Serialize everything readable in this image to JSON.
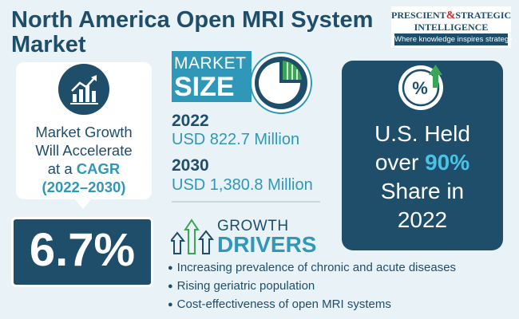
{
  "title": "North America Open MRI System Market",
  "logo": {
    "line1_a": "PRESCIENT",
    "line1_amp": "&",
    "line1_b": "STRATEGIC",
    "line2": "INTELLIGENCE",
    "tagline": "Where knowledge inspires strategy"
  },
  "cagr_panel": {
    "text_line1": "Market Growth",
    "text_line2": "Will Accelerate",
    "text_line3_prefix": "at a ",
    "text_line3_highlight": "CAGR",
    "text_line4": "(2022–2030)",
    "value": "6.7%"
  },
  "market_size": {
    "label1": "MARKET",
    "label2": "SIZE",
    "rows": [
      {
        "year": "2022",
        "amount": "USD 822.7 Million"
      },
      {
        "year": "2030",
        "amount": "USD 1,380.8 Million"
      }
    ]
  },
  "share": {
    "icon_text": "%",
    "line1": "U.S. Held",
    "line2_prefix": "over ",
    "line2_highlight": "90%",
    "line3": "Share in",
    "line4": "2022"
  },
  "growth_drivers": {
    "label1": "GROWTH",
    "label2": "DRIVERS",
    "items": [
      "Increasing prevalence of chronic and acute diseases",
      "Rising geriatric population",
      "Cost-effectiveness of open MRI systems"
    ]
  },
  "colors": {
    "navy": "#1f4e6b",
    "teal": "#2f98b8",
    "highlight": "#4cc1e3",
    "green": "#3aa655",
    "background": "#e9f2f6"
  },
  "icons": [
    "growth-chart-icon",
    "pie-chart-icon",
    "percent-badge-icon",
    "growth-arrows-icon"
  ]
}
